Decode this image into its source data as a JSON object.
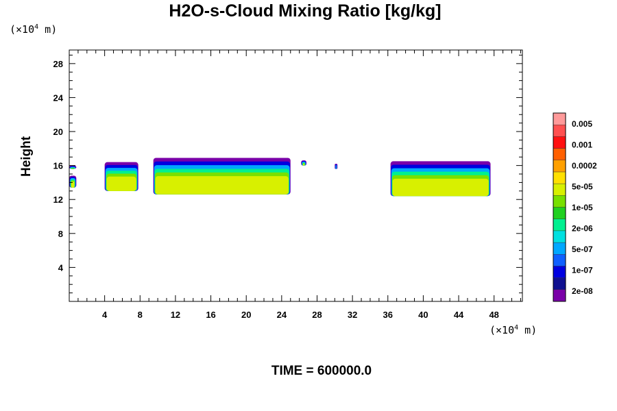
{
  "chart_data": {
    "type": "heatmap",
    "title": "H2O-s-Cloud Mixing Ratio [kg/kg]",
    "ylabel": "Height",
    "x_unit": [
      "(×10",
      "4",
      " m)"
    ],
    "y_unit": [
      "(×10",
      "4",
      " m)"
    ],
    "xlim": [
      0,
      51.2
    ],
    "ylim": [
      0,
      29.6
    ],
    "x_ticks": [
      "4",
      "8",
      "12",
      "16",
      "20",
      "24",
      "28",
      "32",
      "36",
      "40",
      "44",
      "48"
    ],
    "y_ticks": [
      "4",
      "8",
      "12",
      "16",
      "20",
      "24",
      "28"
    ],
    "colorbar": {
      "labels": [
        "0.005",
        "0.001",
        "0.0002",
        "5e-05",
        "1e-05",
        "2e-06",
        "5e-07",
        "1e-07",
        "2e-08"
      ],
      "colors": [
        "#7a00a8",
        "#101090",
        "#0000e0",
        "#1060ff",
        "#00a8ff",
        "#00e0e0",
        "#00f090",
        "#20d020",
        "#78e000",
        "#d8f000",
        "#ffe000",
        "#ffa000",
        "#ff6000",
        "#ff1010",
        "#ff5050",
        "#ff9a9a"
      ]
    },
    "cloud_regions": [
      {
        "x": [
          0,
          0.8
        ],
        "y": [
          15.6,
          16.0
        ]
      },
      {
        "x": [
          0,
          0.8
        ],
        "y": [
          13.4,
          14.8
        ]
      },
      {
        "x": [
          4,
          7.8
        ],
        "y": [
          13.0,
          16.4
        ]
      },
      {
        "x": [
          9.5,
          25
        ],
        "y": [
          12.6,
          16.9
        ]
      },
      {
        "x": [
          26.2,
          26.8
        ],
        "y": [
          16.0,
          16.6
        ]
      },
      {
        "x": [
          30.0,
          30.3
        ],
        "y": [
          15.6,
          16.2
        ]
      },
      {
        "x": [
          36.3,
          47.6
        ],
        "y": [
          12.4,
          16.5
        ]
      }
    ],
    "footer": "TIME = 600000.0"
  }
}
